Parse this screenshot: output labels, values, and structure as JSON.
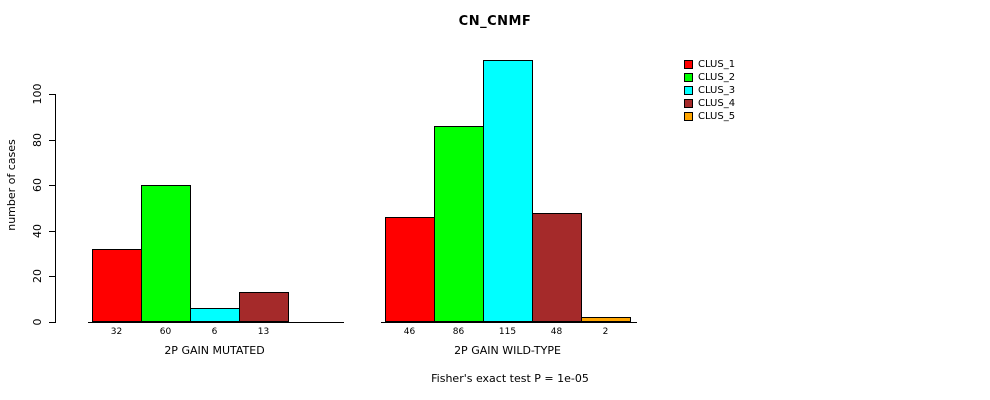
{
  "chart_data": {
    "type": "bar",
    "title": "CN_CNMF",
    "ylabel": "number of cases",
    "xlabel": "",
    "ylim": [
      0,
      116
    ],
    "yticks": [
      0,
      20,
      40,
      60,
      80,
      100
    ],
    "grid": false,
    "legend_position": "right",
    "categories": [
      "2P GAIN MUTATED",
      "2P GAIN WILD-TYPE"
    ],
    "series": [
      {
        "name": "CLUS_1",
        "color": "#FF0000",
        "values": [
          32,
          46
        ]
      },
      {
        "name": "CLUS_2",
        "color": "#00FF00",
        "values": [
          60,
          86
        ]
      },
      {
        "name": "CLUS_3",
        "color": "#00FFFF",
        "values": [
          6,
          115
        ]
      },
      {
        "name": "CLUS_4",
        "color": "#A52A2A",
        "values": [
          13,
          48
        ]
      },
      {
        "name": "CLUS_5",
        "color": "#FFA500",
        "values": [
          0,
          2
        ]
      }
    ],
    "bar_value_labels": {
      "2P GAIN MUTATED": [
        32,
        60,
        6,
        13
      ],
      "2P GAIN WILD-TYPE": [
        46,
        86,
        115,
        48,
        2
      ]
    },
    "annotation": "Fisher's exact test P = 1e-05"
  }
}
